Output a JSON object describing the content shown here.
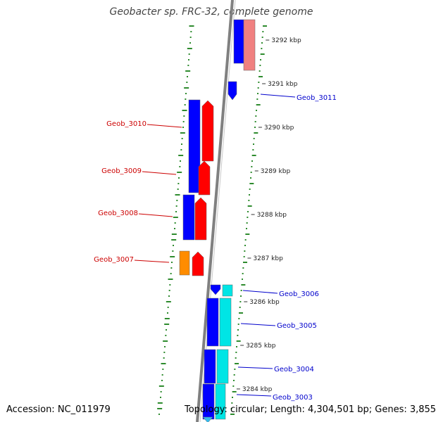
{
  "title": "Geobacter sp. FRC-32, complete genome",
  "footer": {
    "accession": "Accession: NC_011979",
    "summary": "Topology: circular; Length: 4,304,501 bp; Genes: 3,855"
  },
  "colors": {
    "backbone": "#808080",
    "gc_dots": "#2e8b2e",
    "cds_blue": "#0000ff",
    "cds_red": "#ff0000",
    "cds_orange": "#ff8c00",
    "cds_cyan": "#00e5e5",
    "cds_pink": "#f08080",
    "label_red": "#cc0000",
    "label_blue": "#0000cc"
  },
  "ticks": [
    {
      "label": "3292 kbp",
      "kbp": 3292
    },
    {
      "label": "3291 kbp",
      "kbp": 3291
    },
    {
      "label": "3290 kbp",
      "kbp": 3290
    },
    {
      "label": "3289 kbp",
      "kbp": 3289
    },
    {
      "label": "3288 kbp",
      "kbp": 3288
    },
    {
      "label": "3287 kbp",
      "kbp": 3287
    },
    {
      "label": "3286 kbp",
      "kbp": 3286
    },
    {
      "label": "3285 kbp",
      "kbp": 3285
    },
    {
      "label": "3284 kbp",
      "kbp": 3284
    }
  ],
  "gene_labels": [
    {
      "text": "Geob_3011",
      "strand": "right"
    },
    {
      "text": "Geob_3010",
      "strand": "left"
    },
    {
      "text": "Geob_3009",
      "strand": "left"
    },
    {
      "text": "Geob_3008",
      "strand": "left"
    },
    {
      "text": "Geob_3007",
      "strand": "left"
    },
    {
      "text": "Geob_3006",
      "strand": "right"
    },
    {
      "text": "Geob_3005",
      "strand": "right"
    },
    {
      "text": "Geob_3004",
      "strand": "right"
    },
    {
      "text": "Geob_3003",
      "strand": "right"
    }
  ]
}
